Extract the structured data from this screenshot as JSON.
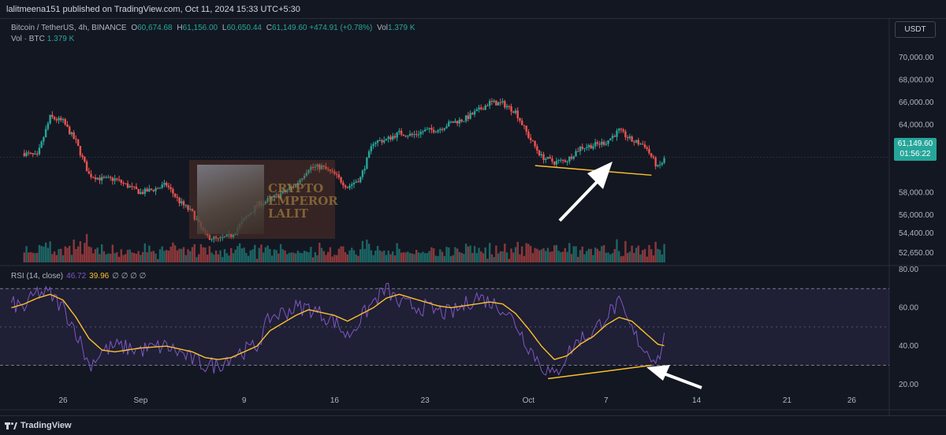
{
  "header": {
    "published": "lalitmeena151 published on TradingView.com, Oct 11, 2024 15:33 UTC+5:30"
  },
  "symbol": {
    "name": "Bitcoin / TetherUS, 4h, BINANCE",
    "open_label": "O",
    "open": "60,674.68",
    "high_label": "H",
    "high": "61,156.00",
    "low_label": "L",
    "low": "60,650.44",
    "close_label": "C",
    "close": "61,149.60",
    "change": "+474.91 (+0.78%)",
    "vol_label": "Vol",
    "vol": "1.379 K"
  },
  "volume_legend": {
    "label": "Vol · BTC",
    "value": "1.379 K"
  },
  "rsi_legend": {
    "label": "RSI (14, close)",
    "rsi": "46.72",
    "ma": "39.96",
    "na": "∅ ∅ ∅ ∅"
  },
  "currency_button": "USDT",
  "last_price": {
    "price": "61,149.60",
    "countdown": "01:56:22"
  },
  "watermark": {
    "line1": "CRYPTO",
    "line2": "EMPEROR",
    "line3": "LALIT"
  },
  "footer": {
    "brand": "TradingView",
    "logo_icon": "tradingview-logo-icon"
  },
  "colors": {
    "up": "#26a69a",
    "down": "#ef5350",
    "rsi": "#7e57c2",
    "rsi_ma": "#fbc02d",
    "trendline": "#fbc02d",
    "arrow": "#ffffff",
    "background": "#131722"
  },
  "chart_data": [
    {
      "type": "candlestick",
      "title": "Bitcoin / TetherUS, 4h, BINANCE",
      "ylim": [
        51600,
        71600
      ],
      "yticks": [
        "70,000.00",
        "68,000.00",
        "66,000.00",
        "64,000.00",
        "62,000.00",
        "58,000.00",
        "56,000.00",
        "54,400.00",
        "52,650.00"
      ],
      "ytick_values": [
        70000,
        68000,
        66000,
        64000,
        62000,
        58000,
        56000,
        54400,
        52650
      ],
      "x_ticks": [
        "26",
        "Sep",
        "9",
        "16",
        "23",
        "Oct",
        "7",
        "14",
        "21",
        "26"
      ],
      "anchors": [
        [
          "Aug 23",
          61500
        ],
        [
          "Aug 24",
          61200
        ],
        [
          "Aug 25",
          64700
        ],
        [
          "Aug 26",
          64300
        ],
        [
          "Aug 27",
          62500
        ],
        [
          "Aug 28",
          59600
        ],
        [
          "Aug 29",
          59200
        ],
        [
          "Aug 30",
          59200
        ],
        [
          "Aug 31",
          58600
        ],
        [
          "Sep 1",
          58000
        ],
        [
          "Sep 2",
          58300
        ],
        [
          "Sep 3",
          58700
        ],
        [
          "Sep 4",
          57200
        ],
        [
          "Sep 5",
          56200
        ],
        [
          "Sep 6",
          54200
        ],
        [
          "Sep 7",
          53800
        ],
        [
          "Sep 8",
          54200
        ],
        [
          "Sep 9",
          55600
        ],
        [
          "Sep 10",
          56900
        ],
        [
          "Sep 11",
          57400
        ],
        [
          "Sep 12",
          58000
        ],
        [
          "Sep 13",
          58700
        ],
        [
          "Sep 14",
          60200
        ],
        [
          "Sep 15",
          60300
        ],
        [
          "Sep 16",
          59600
        ],
        [
          "Sep 17",
          58500
        ],
        [
          "Sep 18",
          59300
        ],
        [
          "Sep 19",
          62500
        ],
        [
          "Sep 20",
          62700
        ],
        [
          "Sep 21",
          63300
        ],
        [
          "Sep 22",
          63100
        ],
        [
          "Sep 23",
          63500
        ],
        [
          "Sep 24",
          63600
        ],
        [
          "Sep 25",
          64200
        ],
        [
          "Sep 26",
          64500
        ],
        [
          "Sep 27",
          65200
        ],
        [
          "Sep 28",
          66000
        ],
        [
          "Sep 29",
          65900
        ],
        [
          "Sep 30",
          65200
        ],
        [
          "Oct 1",
          63000
        ],
        [
          "Oct 2",
          61200
        ],
        [
          "Oct 3",
          60700
        ],
        [
          "Oct 4",
          60900
        ],
        [
          "Oct 5",
          62000
        ],
        [
          "Oct 6",
          62200
        ],
        [
          "Oct 7",
          62500
        ],
        [
          "Oct 8",
          63500
        ],
        [
          "Oct 9",
          62600
        ],
        [
          "Oct 10",
          62200
        ],
        [
          "Oct 11",
          60200
        ],
        [
          "Oct 11 15:33",
          61150
        ]
      ],
      "volume_scale": "relative, 0 to 1",
      "last_price": 61149.6,
      "annotations": [
        {
          "type": "trendline",
          "from": [
            "Oct 2",
            60400
          ],
          "to": [
            "Oct 11",
            59550
          ]
        },
        {
          "type": "arrow",
          "direction": "up-right",
          "target": "trendline"
        }
      ]
    },
    {
      "type": "line",
      "title": "RSI (14, close)",
      "ylim": [
        15,
        82
      ],
      "yticks": [
        "80.00",
        "60.00",
        "40.00",
        "20.00"
      ],
      "bands": [
        30,
        70
      ],
      "series": [
        {
          "name": "RSI",
          "anchors": [
            [
              "Aug 22",
              62
            ],
            [
              "Aug 23",
              60
            ],
            [
              "Aug 24",
              68
            ],
            [
              "Aug 25",
              67
            ],
            [
              "Aug 26",
              60
            ],
            [
              "Aug 27",
              48
            ],
            [
              "Aug 28",
              30
            ],
            [
              "Aug 29",
              37
            ],
            [
              "Aug 30",
              40
            ],
            [
              "Sep 1",
              38
            ],
            [
              "Sep 3",
              40
            ],
            [
              "Sep 5",
              33
            ],
            [
              "Sep 6",
              30
            ],
            [
              "Sep 7",
              30
            ],
            [
              "Sep 8",
              35
            ],
            [
              "Sep 10",
              40
            ],
            [
              "Sep 11",
              55
            ],
            [
              "Sep 13",
              60
            ],
            [
              "Sep 14",
              60
            ],
            [
              "Sep 16",
              53
            ],
            [
              "Sep 17",
              45
            ],
            [
              "Sep 19",
              63
            ],
            [
              "Sep 20",
              70
            ],
            [
              "Sep 21",
              62
            ],
            [
              "Sep 23",
              60
            ],
            [
              "Sep 24",
              58
            ],
            [
              "Sep 25",
              57
            ],
            [
              "Sep 26",
              61
            ],
            [
              "Sep 27",
              66
            ],
            [
              "Sep 28",
              63
            ],
            [
              "Sep 29",
              60
            ],
            [
              "Sep 30",
              52
            ],
            [
              "Oct 1",
              40
            ],
            [
              "Oct 2",
              30
            ],
            [
              "Oct 3",
              24
            ],
            [
              "Oct 4",
              36
            ],
            [
              "Oct 5",
              44
            ],
            [
              "Oct 6",
              47
            ],
            [
              "Oct 7",
              56
            ],
            [
              "Oct 8",
              62
            ],
            [
              "Oct 9",
              48
            ],
            [
              "Oct 10",
              38
            ],
            [
              "Oct 11",
              33
            ],
            [
              "Oct 11 15:33",
              46.72
            ]
          ]
        },
        {
          "name": "RSI-based MA",
          "anchors": [
            [
              "Aug 22",
              60
            ],
            [
              "Aug 23",
              62
            ],
            [
              "Aug 24",
              65
            ],
            [
              "Aug 25",
              67
            ],
            [
              "Aug 26",
              64
            ],
            [
              "Aug 27",
              55
            ],
            [
              "Aug 28",
              44
            ],
            [
              "Aug 29",
              38
            ],
            [
              "Aug 30",
              37
            ],
            [
              "Sep 1",
              39
            ],
            [
              "Sep 3",
              40
            ],
            [
              "Sep 5",
              37
            ],
            [
              "Sep 6",
              34
            ],
            [
              "Sep 7",
              33
            ],
            [
              "Sep 8",
              34
            ],
            [
              "Sep 10",
              40
            ],
            [
              "Sep 11",
              48
            ],
            [
              "Sep 13",
              56
            ],
            [
              "Sep 14",
              59
            ],
            [
              "Sep 16",
              56
            ],
            [
              "Sep 17",
              53
            ],
            [
              "Sep 19",
              60
            ],
            [
              "Sep 20",
              65
            ],
            [
              "Sep 21",
              67
            ],
            [
              "Sep 23",
              63
            ],
            [
              "Sep 24",
              61
            ],
            [
              "Sep 25",
              60
            ],
            [
              "Sep 26",
              61
            ],
            [
              "Sep 27",
              62
            ],
            [
              "Sep 28",
              63
            ],
            [
              "Sep 29",
              62
            ],
            [
              "Sep 30",
              57
            ],
            [
              "Oct 1",
              49
            ],
            [
              "Oct 2",
              40
            ],
            [
              "Oct 3",
              33
            ],
            [
              "Oct 4",
              35
            ],
            [
              "Oct 5",
              41
            ],
            [
              "Oct 6",
              45
            ],
            [
              "Oct 7",
              51
            ],
            [
              "Oct 8",
              55
            ],
            [
              "Oct 9",
              53
            ],
            [
              "Oct 10",
              47
            ],
            [
              "Oct 11",
              41
            ],
            [
              "Oct 11 15:33",
              39.96
            ]
          ]
        }
      ],
      "annotations": [
        {
          "type": "trendline",
          "from": [
            "Oct 3",
            23
          ],
          "to": [
            "Oct 11",
            30
          ]
        },
        {
          "type": "arrow",
          "direction": "up-left",
          "target": "trendline"
        }
      ]
    }
  ]
}
